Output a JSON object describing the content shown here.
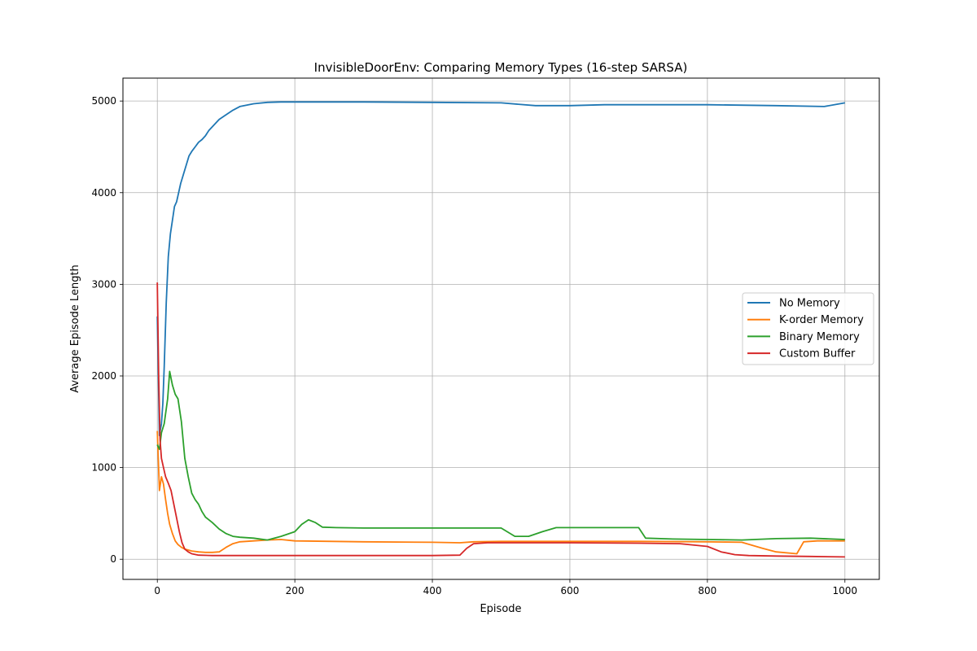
{
  "chart_data": {
    "type": "line",
    "title": "InvisibleDoorEnv: Comparing Memory Types (16-step SARSA)",
    "xlabel": "Episode",
    "ylabel": "Average Episode Length",
    "xlim": [
      -50,
      1050
    ],
    "ylim": [
      -220,
      5250
    ],
    "xticks": [
      0,
      200,
      400,
      600,
      800,
      1000
    ],
    "yticks": [
      0,
      1000,
      2000,
      3000,
      4000,
      5000
    ],
    "grid": true,
    "legend_position": "center-right",
    "series": [
      {
        "name": "No Memory",
        "color": "#1f77b4",
        "points": [
          [
            0,
            2650
          ],
          [
            3,
            1350
          ],
          [
            6,
            1480
          ],
          [
            8,
            1700
          ],
          [
            10,
            2100
          ],
          [
            13,
            2800
          ],
          [
            16,
            3300
          ],
          [
            19,
            3550
          ],
          [
            22,
            3700
          ],
          [
            25,
            3850
          ],
          [
            28,
            3900
          ],
          [
            31,
            4000
          ],
          [
            34,
            4100
          ],
          [
            38,
            4200
          ],
          [
            42,
            4300
          ],
          [
            46,
            4400
          ],
          [
            50,
            4450
          ],
          [
            55,
            4500
          ],
          [
            60,
            4550
          ],
          [
            65,
            4580
          ],
          [
            70,
            4620
          ],
          [
            75,
            4680
          ],
          [
            80,
            4720
          ],
          [
            90,
            4800
          ],
          [
            100,
            4850
          ],
          [
            110,
            4900
          ],
          [
            120,
            4940
          ],
          [
            140,
            4970
          ],
          [
            160,
            4985
          ],
          [
            180,
            4990
          ],
          [
            200,
            4990
          ],
          [
            300,
            4990
          ],
          [
            400,
            4985
          ],
          [
            500,
            4980
          ],
          [
            550,
            4950
          ],
          [
            600,
            4950
          ],
          [
            650,
            4960
          ],
          [
            700,
            4960
          ],
          [
            800,
            4960
          ],
          [
            900,
            4950
          ],
          [
            970,
            4940
          ],
          [
            1000,
            4980
          ]
        ]
      },
      {
        "name": "K-order Memory",
        "color": "#ff7f0e",
        "points": [
          [
            0,
            1400
          ],
          [
            3,
            750
          ],
          [
            6,
            900
          ],
          [
            9,
            820
          ],
          [
            12,
            650
          ],
          [
            15,
            500
          ],
          [
            18,
            380
          ],
          [
            22,
            280
          ],
          [
            26,
            200
          ],
          [
            30,
            160
          ],
          [
            35,
            130
          ],
          [
            40,
            110
          ],
          [
            50,
            90
          ],
          [
            60,
            80
          ],
          [
            70,
            75
          ],
          [
            80,
            75
          ],
          [
            90,
            80
          ],
          [
            100,
            130
          ],
          [
            110,
            170
          ],
          [
            120,
            190
          ],
          [
            140,
            200
          ],
          [
            160,
            210
          ],
          [
            180,
            215
          ],
          [
            200,
            200
          ],
          [
            300,
            190
          ],
          [
            400,
            185
          ],
          [
            440,
            180
          ],
          [
            460,
            190
          ],
          [
            500,
            195
          ],
          [
            600,
            195
          ],
          [
            700,
            195
          ],
          [
            800,
            190
          ],
          [
            850,
            185
          ],
          [
            880,
            120
          ],
          [
            900,
            80
          ],
          [
            930,
            60
          ],
          [
            940,
            190
          ],
          [
            960,
            200
          ],
          [
            1000,
            200
          ]
        ]
      },
      {
        "name": "Binary Memory",
        "color": "#2ca02c",
        "points": [
          [
            0,
            1250
          ],
          [
            3,
            1200
          ],
          [
            6,
            1380
          ],
          [
            10,
            1480
          ],
          [
            15,
            1750
          ],
          [
            18,
            2050
          ],
          [
            22,
            1900
          ],
          [
            26,
            1800
          ],
          [
            30,
            1750
          ],
          [
            35,
            1500
          ],
          [
            40,
            1100
          ],
          [
            45,
            900
          ],
          [
            50,
            720
          ],
          [
            55,
            650
          ],
          [
            60,
            600
          ],
          [
            65,
            520
          ],
          [
            70,
            460
          ],
          [
            80,
            400
          ],
          [
            90,
            330
          ],
          [
            100,
            280
          ],
          [
            110,
            250
          ],
          [
            120,
            240
          ],
          [
            140,
            230
          ],
          [
            160,
            210
          ],
          [
            180,
            250
          ],
          [
            200,
            300
          ],
          [
            210,
            380
          ],
          [
            220,
            430
          ],
          [
            230,
            400
          ],
          [
            240,
            350
          ],
          [
            260,
            345
          ],
          [
            300,
            340
          ],
          [
            400,
            340
          ],
          [
            500,
            340
          ],
          [
            520,
            250
          ],
          [
            540,
            250
          ],
          [
            560,
            300
          ],
          [
            580,
            345
          ],
          [
            600,
            345
          ],
          [
            700,
            345
          ],
          [
            710,
            230
          ],
          [
            750,
            220
          ],
          [
            800,
            215
          ],
          [
            850,
            210
          ],
          [
            900,
            225
          ],
          [
            950,
            230
          ],
          [
            1000,
            215
          ]
        ]
      },
      {
        "name": "Custom Buffer",
        "color": "#d62728",
        "points": [
          [
            0,
            3020
          ],
          [
            2,
            2000
          ],
          [
            4,
            1300
          ],
          [
            6,
            1100
          ],
          [
            9,
            1000
          ],
          [
            12,
            900
          ],
          [
            16,
            830
          ],
          [
            20,
            750
          ],
          [
            24,
            600
          ],
          [
            28,
            450
          ],
          [
            32,
            300
          ],
          [
            36,
            180
          ],
          [
            40,
            110
          ],
          [
            45,
            80
          ],
          [
            50,
            60
          ],
          [
            60,
            45
          ],
          [
            80,
            40
          ],
          [
            100,
            40
          ],
          [
            150,
            40
          ],
          [
            200,
            40
          ],
          [
            300,
            40
          ],
          [
            400,
            40
          ],
          [
            440,
            45
          ],
          [
            450,
            120
          ],
          [
            460,
            170
          ],
          [
            480,
            180
          ],
          [
            500,
            180
          ],
          [
            600,
            180
          ],
          [
            700,
            175
          ],
          [
            760,
            170
          ],
          [
            800,
            140
          ],
          [
            820,
            80
          ],
          [
            840,
            50
          ],
          [
            860,
            40
          ],
          [
            900,
            35
          ],
          [
            950,
            30
          ],
          [
            1000,
            25
          ]
        ]
      }
    ]
  }
}
